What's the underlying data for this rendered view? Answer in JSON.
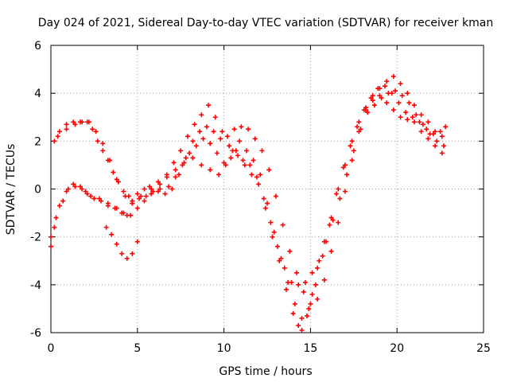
{
  "chart_data": {
    "type": "scatter",
    "title": "Day 024 of 2021, Sidereal Day-to-day VTEC variation (SDTVAR) for receiver kman",
    "xlabel": "GPS time / hours",
    "ylabel": "SDTVAR / TECUs",
    "xlim": [
      0,
      25
    ],
    "ylim": [
      -6,
      6
    ],
    "xticks": [
      0,
      5,
      10,
      15,
      20,
      25
    ],
    "yticks": [
      -6,
      -4,
      -2,
      0,
      2,
      4,
      6
    ],
    "grid": true,
    "marker": "+",
    "color": "#ff0000",
    "series": [
      {
        "x": [
          0.0,
          0.2,
          0.5,
          0.9,
          1.3,
          1.7,
          2.0,
          2.3,
          2.8,
          3.3,
          3.8,
          4.2,
          4.6,
          5.0,
          5.4,
          5.8,
          6.3,
          6.8,
          7.2,
          7.6,
          8.0,
          8.4,
          8.8,
          9.2,
          9.6,
          10.0,
          10.4,
          10.8,
          11.2,
          11.6,
          12.0,
          12.4,
          12.8,
          13.2,
          13.6,
          14.0,
          14.3,
          14.5,
          14.8,
          15.1,
          15.4,
          15.8,
          16.2,
          16.6,
          17.0,
          17.4,
          17.8,
          18.2,
          18.6,
          19.0,
          19.4,
          19.8,
          20.2,
          20.6,
          21.0,
          21.4,
          21.8,
          22.2,
          22.6
        ],
        "y": [
          -2.4,
          -1.6,
          -0.7,
          -0.1,
          0.2,
          0.1,
          -0.1,
          -0.3,
          -0.4,
          -0.6,
          -0.8,
          -1.0,
          -1.1,
          -0.8,
          -0.5,
          -0.2,
          0.0,
          0.1,
          0.5,
          1.0,
          1.5,
          1.8,
          2.1,
          1.9,
          1.5,
          1.1,
          1.3,
          1.4,
          1.0,
          0.6,
          0.2,
          -0.8,
          -2.0,
          -3.0,
          -4.2,
          -5.2,
          -5.7,
          -5.9,
          -5.3,
          -4.4,
          -3.3,
          -2.2,
          -1.2,
          0.0,
          1.0,
          2.0,
          2.8,
          3.4,
          3.7,
          3.9,
          3.6,
          3.3,
          3.0,
          2.9,
          2.8,
          2.4,
          2.1,
          1.8,
          1.5
        ]
      },
      {
        "x": [
          0.0,
          0.3,
          0.7,
          1.0,
          1.4,
          1.8,
          2.1,
          2.5,
          2.9,
          3.3,
          3.7,
          4.1,
          4.4,
          4.7,
          5.1,
          5.5,
          5.9,
          6.3,
          6.7,
          7.1,
          7.5,
          7.9,
          8.3,
          8.7,
          9.1,
          9.5,
          9.9,
          10.3,
          10.7,
          11.1,
          11.5,
          11.9,
          12.3,
          12.7,
          13.1,
          13.5,
          13.9,
          14.3,
          14.7,
          15.1,
          15.5,
          15.9,
          16.3,
          16.7,
          17.1,
          17.5,
          17.9,
          18.3,
          18.7,
          19.1,
          19.5,
          19.9,
          20.3,
          20.7,
          21.1,
          21.5,
          21.9,
          22.3,
          22.7
        ],
        "y": [
          -2.0,
          -1.2,
          -0.5,
          0.0,
          0.1,
          0.0,
          -0.2,
          -0.4,
          -0.5,
          -0.7,
          -0.8,
          -1.0,
          -1.1,
          -0.6,
          -0.4,
          -0.3,
          -0.1,
          0.2,
          0.6,
          1.1,
          1.6,
          2.2,
          2.7,
          3.1,
          3.5,
          3.0,
          2.4,
          1.8,
          1.6,
          1.2,
          1.0,
          0.5,
          -0.4,
          -1.4,
          -2.4,
          -3.3,
          -3.9,
          -4.0,
          -3.9,
          -3.5,
          -3.0,
          -2.2,
          -1.3,
          -0.4,
          0.6,
          1.6,
          2.5,
          3.2,
          3.5,
          3.8,
          4.0,
          4.1,
          3.9,
          3.6,
          3.1,
          2.7,
          2.3,
          2.0,
          1.8
        ]
      },
      {
        "x": [
          0.2,
          0.5,
          0.9,
          1.3,
          1.7,
          2.1,
          2.4,
          2.7,
          3.0,
          3.3,
          3.6,
          3.9,
          4.2,
          4.5,
          4.7,
          5.0,
          5.4,
          5.8,
          6.2,
          6.6,
          7.0,
          7.4,
          7.8,
          8.2,
          8.6,
          9.0,
          9.4,
          9.8,
          10.2,
          10.6,
          11.0,
          11.4,
          11.8,
          12.2,
          12.6,
          13.0,
          13.4,
          13.8,
          14.2,
          14.6,
          15.0,
          15.4,
          15.8,
          16.2,
          16.6,
          17.0,
          17.4,
          17.8,
          18.2,
          18.6,
          19.0,
          19.4,
          19.8,
          20.2,
          20.6,
          21.0,
          21.4,
          21.8,
          22.2,
          22.6
        ],
        "y": [
          2.0,
          2.4,
          2.7,
          2.8,
          2.8,
          2.8,
          2.5,
          2.0,
          1.6,
          1.2,
          0.7,
          0.3,
          -0.1,
          -0.3,
          -0.5,
          -0.2,
          0.0,
          0.0,
          -0.1,
          -0.2,
          0.0,
          0.6,
          1.3,
          2.0,
          2.4,
          2.6,
          2.4,
          2.1,
          2.2,
          2.5,
          2.6,
          2.5,
          2.1,
          1.6,
          0.8,
          -0.3,
          -1.5,
          -2.6,
          -3.5,
          -4.3,
          -4.8,
          -4.6,
          -3.8,
          -2.6,
          -1.4,
          -0.1,
          1.2,
          2.4,
          3.3,
          3.9,
          4.2,
          4.5,
          4.7,
          4.4,
          4.0,
          3.5,
          3.1,
          2.8,
          2.4,
          2.2
        ]
      },
      {
        "x": [
          0.4,
          0.9,
          1.4,
          1.8,
          2.2,
          2.6,
          3.0,
          3.4,
          3.8,
          4.3,
          4.7,
          5.2,
          5.7,
          6.2,
          6.7,
          7.2,
          7.7,
          8.2,
          8.7,
          9.2,
          9.7,
          10.1,
          10.5,
          10.9,
          11.3,
          11.7,
          12.1,
          12.5,
          12.9,
          13.3,
          13.7,
          14.1,
          14.5,
          14.9,
          15.3,
          15.7,
          16.1,
          16.5,
          16.9,
          17.3,
          17.7,
          18.1,
          18.5,
          18.9,
          19.3,
          19.7,
          20.1,
          20.5,
          20.9,
          21.3,
          21.7,
          22.1,
          22.5,
          22.8
        ],
        "y": [
          2.2,
          2.5,
          2.7,
          2.8,
          2.8,
          2.4,
          1.9,
          1.2,
          0.4,
          -0.3,
          -0.6,
          -0.3,
          0.1,
          0.3,
          0.5,
          0.8,
          1.1,
          1.3,
          1.0,
          0.8,
          0.6,
          1.0,
          1.6,
          2.0,
          1.6,
          1.2,
          0.6,
          -0.6,
          -1.8,
          -2.9,
          -3.9,
          -4.8,
          -5.4,
          -5.0,
          -4.0,
          -2.8,
          -1.5,
          -0.2,
          0.9,
          1.8,
          2.6,
          3.3,
          3.8,
          4.2,
          4.3,
          4.0,
          3.6,
          3.2,
          3.0,
          2.8,
          2.5,
          2.3,
          2.4,
          2.6
        ]
      },
      {
        "x": [
          3.2,
          3.5,
          3.8,
          4.1,
          4.4,
          4.7,
          5.0
        ],
        "y": [
          -1.6,
          -1.9,
          -2.3,
          -2.7,
          -2.9,
          -2.7,
          -2.2
        ]
      }
    ]
  }
}
